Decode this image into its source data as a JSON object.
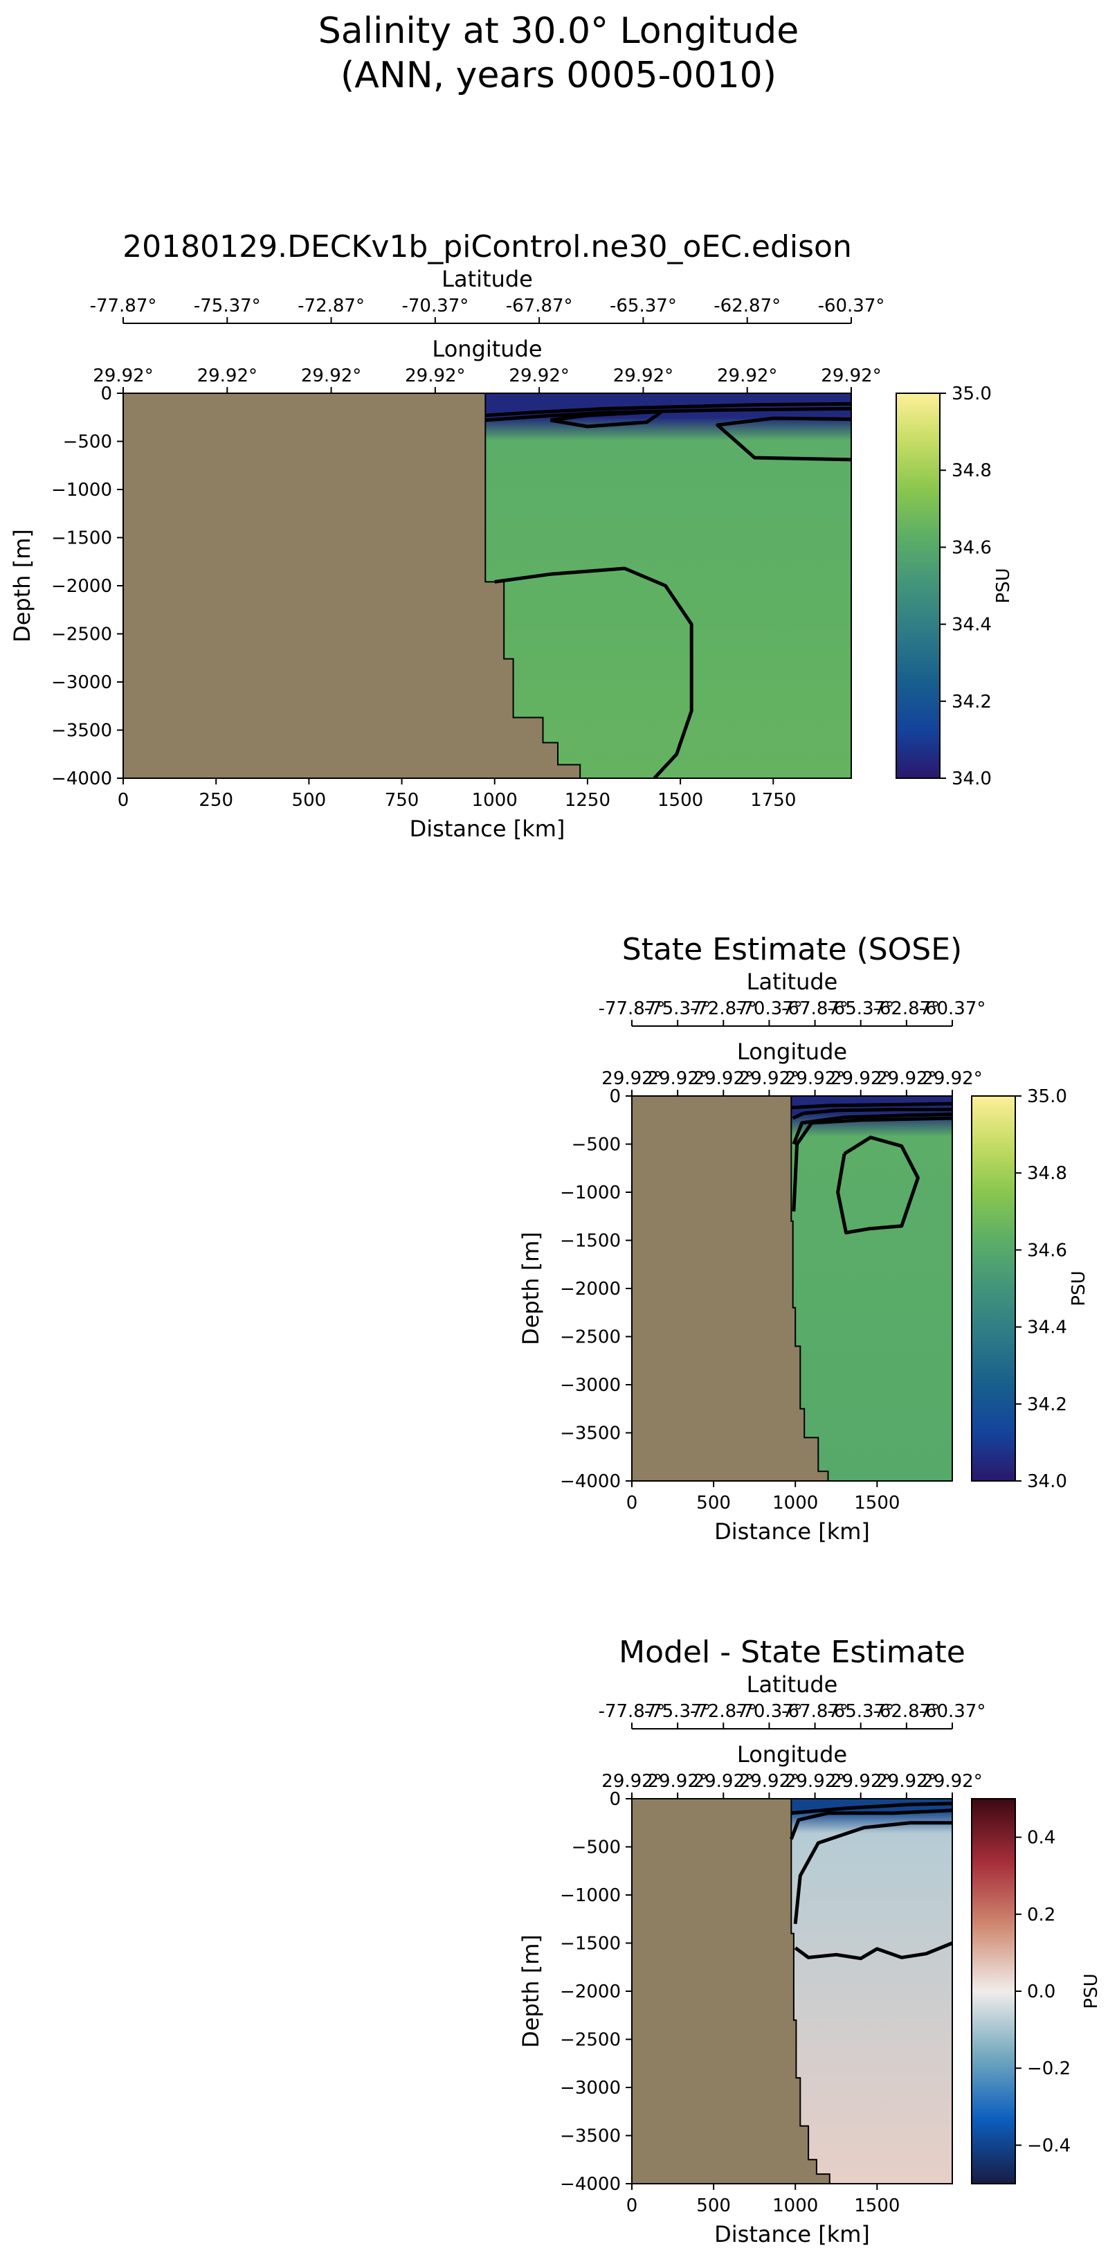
{
  "suptitle": {
    "line1": "Salinity at 30.0° Longitude",
    "line2": "(ANN, years 0005-0010)"
  },
  "colors": {
    "land": "#8e7f63",
    "contour": "#000000"
  },
  "chart_data": [
    {
      "type": "heatmap",
      "title": "20180129.DECKv1b_piControl.ne30_oEC.edison",
      "xlabel": "Distance [km]",
      "ylabel": "Depth [m]",
      "xlim": [
        0,
        1960
      ],
      "ylim": [
        -4000,
        0
      ],
      "xticks": [
        0,
        250,
        500,
        750,
        1000,
        1250,
        1500,
        1750
      ],
      "yticks": [
        0,
        -500,
        -1000,
        -1500,
        -2000,
        -2500,
        -3000,
        -3500,
        -4000
      ],
      "top_axes": [
        {
          "label": "Latitude",
          "ticks": [
            "-77.87°",
            "-75.37°",
            "-72.87°",
            "-70.37°",
            "-67.87°",
            "-65.37°",
            "-62.87°",
            "-60.37°"
          ]
        },
        {
          "label": "Longitude",
          "ticks": [
            "29.92°",
            "29.92°",
            "29.92°",
            "29.92°",
            "29.92°",
            "29.92°",
            "29.92°",
            "29.92°"
          ]
        }
      ],
      "colorbar": {
        "label": "PSU",
        "range": [
          34.0,
          35.0
        ],
        "ticks": [
          34.0,
          34.2,
          34.4,
          34.6,
          34.8,
          35.0
        ],
        "colormap": "haline"
      },
      "land_boundary": [
        [
          0,
          0
        ],
        [
          975,
          0
        ],
        [
          975,
          -1960
        ],
        [
          1025,
          -1960
        ],
        [
          1025,
          -2760
        ],
        [
          1050,
          -2760
        ],
        [
          1050,
          -3370
        ],
        [
          1130,
          -3370
        ],
        [
          1130,
          -3630
        ],
        [
          1170,
          -3630
        ],
        [
          1170,
          -3860
        ],
        [
          1230,
          -3860
        ],
        [
          1230,
          -4000
        ],
        [
          0,
          -4000
        ]
      ],
      "water_fill": {
        "surface_value": 34.05,
        "surface_depth": -250,
        "interior_value": 34.62,
        "deep_value": 34.65
      },
      "contours": [
        [
          [
            975,
            -230
          ],
          [
            1100,
            -200
          ],
          [
            1300,
            -160
          ],
          [
            1500,
            -140
          ],
          [
            1700,
            -120
          ],
          [
            1960,
            -110
          ]
        ],
        [
          [
            975,
            -280
          ],
          [
            1120,
            -240
          ],
          [
            1300,
            -200
          ],
          [
            1600,
            -175
          ],
          [
            1960,
            -160
          ]
        ],
        [
          [
            1150,
            -280
          ],
          [
            1250,
            -230
          ],
          [
            1450,
            -190
          ],
          [
            1410,
            -300
          ],
          [
            1250,
            -345
          ],
          [
            1150,
            -280
          ]
        ],
        [
          [
            1960,
            -270
          ],
          [
            1750,
            -260
          ],
          [
            1600,
            -330
          ],
          [
            1700,
            -670
          ],
          [
            1960,
            -690
          ]
        ],
        [
          [
            1000,
            -1960
          ],
          [
            1150,
            -1880
          ],
          [
            1350,
            -1820
          ],
          [
            1460,
            -2000
          ],
          [
            1530,
            -2400
          ],
          [
            1530,
            -3300
          ],
          [
            1490,
            -3750
          ],
          [
            1430,
            -4000
          ]
        ]
      ]
    },
    {
      "type": "heatmap",
      "title": "State Estimate (SOSE)",
      "xlabel": "Distance [km]",
      "ylabel": "Depth [m]",
      "xlim": [
        0,
        1960
      ],
      "ylim": [
        -4000,
        0
      ],
      "xticks": [
        0,
        500,
        1000,
        1500
      ],
      "yticks": [
        0,
        -500,
        -1000,
        -1500,
        -2000,
        -2500,
        -3000,
        -3500,
        -4000
      ],
      "top_axes": [
        {
          "label": "Latitude",
          "ticks": [
            "-77.87°",
            "-75.37°",
            "-72.87°",
            "-70.37°",
            "-67.87°",
            "-65.37°",
            "-62.87°",
            "-60.37°"
          ]
        },
        {
          "label": "Longitude",
          "ticks": [
            "29.92°",
            "29.92°",
            "29.92°",
            "29.92°",
            "29.92°",
            "29.92°",
            "29.92°",
            "29.92°"
          ]
        }
      ],
      "colorbar": {
        "label": "PSU",
        "range": [
          34.0,
          35.0
        ],
        "ticks": [
          34.0,
          34.2,
          34.4,
          34.6,
          34.8,
          35.0
        ],
        "colormap": "haline"
      },
      "land_boundary": [
        [
          0,
          0
        ],
        [
          975,
          0
        ],
        [
          975,
          -1300
        ],
        [
          985,
          -1300
        ],
        [
          985,
          -2200
        ],
        [
          1000,
          -2200
        ],
        [
          1000,
          -2600
        ],
        [
          1030,
          -2600
        ],
        [
          1030,
          -3250
        ],
        [
          1055,
          -3250
        ],
        [
          1055,
          -3550
        ],
        [
          1140,
          -3550
        ],
        [
          1140,
          -3900
        ],
        [
          1200,
          -3900
        ],
        [
          1200,
          -4000
        ],
        [
          0,
          -4000
        ]
      ],
      "water_fill": {
        "surface_value": 34.05,
        "surface_depth": -180,
        "interior_value": 34.62,
        "deep_value": 34.6
      },
      "contours": [
        [
          [
            975,
            -120
          ],
          [
            1200,
            -100
          ],
          [
            1600,
            -90
          ],
          [
            1960,
            -80
          ]
        ],
        [
          [
            985,
            -230
          ],
          [
            1050,
            -180
          ],
          [
            1250,
            -150
          ],
          [
            1600,
            -140
          ],
          [
            1960,
            -140
          ]
        ],
        [
          [
            990,
            -500
          ],
          [
            1040,
            -280
          ],
          [
            1300,
            -220
          ],
          [
            1700,
            -200
          ],
          [
            1960,
            -190
          ]
        ],
        [
          [
            990,
            -1200
          ],
          [
            1010,
            -500
          ],
          [
            1100,
            -280
          ],
          [
            1400,
            -250
          ],
          [
            1960,
            -230
          ]
        ],
        [
          [
            1300,
            -600
          ],
          [
            1460,
            -430
          ],
          [
            1650,
            -520
          ],
          [
            1750,
            -850
          ],
          [
            1650,
            -1350
          ],
          [
            1450,
            -1380
          ],
          [
            1310,
            -1420
          ],
          [
            1260,
            -1000
          ],
          [
            1300,
            -600
          ]
        ]
      ]
    },
    {
      "type": "heatmap",
      "title": "Model - State Estimate",
      "xlabel": "Distance [km]",
      "ylabel": "Depth [m]",
      "xlim": [
        0,
        1960
      ],
      "ylim": [
        -4000,
        0
      ],
      "xticks": [
        0,
        500,
        1000,
        1500
      ],
      "yticks": [
        0,
        -500,
        -1000,
        -1500,
        -2000,
        -2500,
        -3000,
        -3500,
        -4000
      ],
      "top_axes": [
        {
          "label": "Latitude",
          "ticks": [
            "-77.87°",
            "-75.37°",
            "-72.87°",
            "-70.37°",
            "-67.87°",
            "-65.37°",
            "-62.87°",
            "-60.37°"
          ]
        },
        {
          "label": "Longitude",
          "ticks": [
            "29.92°",
            "29.92°",
            "29.92°",
            "29.92°",
            "29.92°",
            "29.92°",
            "29.92°",
            "29.92°"
          ]
        }
      ],
      "colorbar": {
        "label": "PSU",
        "range": [
          -0.5,
          0.5
        ],
        "ticks": [
          -0.4,
          -0.2,
          0.0,
          0.2,
          0.4
        ],
        "colormap": "balance"
      },
      "land_boundary": [
        [
          0,
          0
        ],
        [
          975,
          0
        ],
        [
          975,
          -1400
        ],
        [
          990,
          -1400
        ],
        [
          990,
          -2300
        ],
        [
          1005,
          -2300
        ],
        [
          1005,
          -2900
        ],
        [
          1030,
          -2900
        ],
        [
          1030,
          -3400
        ],
        [
          1080,
          -3400
        ],
        [
          1080,
          -3750
        ],
        [
          1130,
          -3750
        ],
        [
          1130,
          -3900
        ],
        [
          1210,
          -3900
        ],
        [
          1210,
          -4000
        ],
        [
          0,
          -4000
        ]
      ],
      "water_fill": {
        "surface_value": -0.4,
        "surface_depth": -120,
        "interior_value": -0.08,
        "deep_value": 0.05
      },
      "contours": [
        [
          [
            975,
            -150
          ],
          [
            1300,
            -100
          ],
          [
            1700,
            -60
          ],
          [
            1960,
            -50
          ]
        ],
        [
          [
            975,
            -420
          ],
          [
            1020,
            -220
          ],
          [
            1200,
            -150
          ],
          [
            1600,
            -150
          ],
          [
            1960,
            -120
          ]
        ],
        [
          [
            1000,
            -1300
          ],
          [
            1030,
            -800
          ],
          [
            1140,
            -460
          ],
          [
            1420,
            -300
          ],
          [
            1700,
            -250
          ],
          [
            1960,
            -250
          ]
        ],
        [
          [
            1000,
            -1550
          ],
          [
            1080,
            -1650
          ],
          [
            1250,
            -1620
          ],
          [
            1400,
            -1660
          ],
          [
            1500,
            -1560
          ],
          [
            1650,
            -1650
          ],
          [
            1800,
            -1610
          ],
          [
            1960,
            -1500
          ]
        ]
      ]
    }
  ]
}
